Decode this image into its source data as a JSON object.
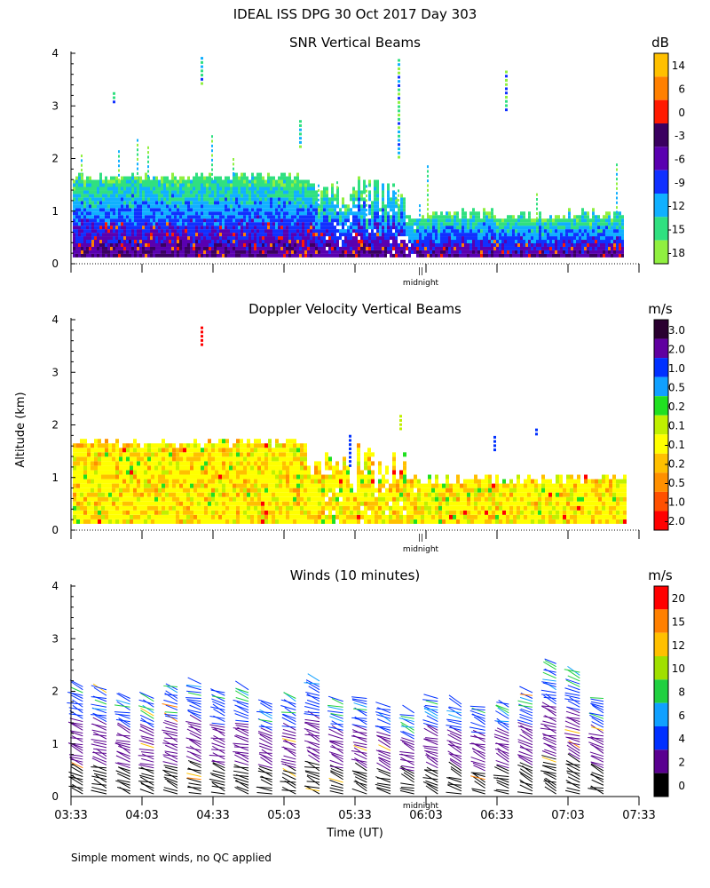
{
  "figure": {
    "title": "IDEAL ISS DPG  30 Oct 2017 Day 303",
    "ylabel": "Altitude (km)",
    "xlabel": "Time (UT)",
    "footnote": "Simple moment winds, no QC applied",
    "midnight_label": "midnight",
    "midnight_mark": "||"
  },
  "chart_data": [
    {
      "type": "heatmap",
      "title": "SNR Vertical Beams",
      "ylim": [
        0,
        4
      ],
      "yticks": [
        "0",
        "1",
        "2",
        "3",
        "4"
      ],
      "colorbar": {
        "unit": "dB",
        "labels": [
          "14",
          "6",
          "0",
          "-3",
          "-6",
          "-9",
          "-12",
          "-15",
          "-18"
        ],
        "colors": [
          "#ffc000",
          "#ff8000",
          "#ff1a00",
          "#3a0060",
          "#5a00b0",
          "#1030ff",
          "#10b0ff",
          "#30e080",
          "#90f040"
        ]
      },
      "legend": "right",
      "grid": false,
      "features": [
        "dense echo 0-1.6 km from 03:33 to 05:30",
        "thinner layer 0-0.9 km after 06:00",
        "vertical plumes up to ~4 km near 04:26"
      ]
    },
    {
      "type": "heatmap",
      "title": "Doppler Velocity Vertical Beams",
      "ylim": [
        0,
        4
      ],
      "yticks": [
        "0",
        "1",
        "2",
        "3",
        "4"
      ],
      "colorbar": {
        "unit": "m/s",
        "labels": [
          "3.0",
          "2.0",
          "1.0",
          "0.5",
          "0.2",
          "0.1",
          "-0.1",
          "-0.2",
          "-0.5",
          "-1.0",
          "-2.0"
        ],
        "colors": [
          "#2a0030",
          "#6000a0",
          "#0030ff",
          "#10a0ff",
          "#20e020",
          "#c0f000",
          "#ffff00",
          "#ffc000",
          "#ff9000",
          "#ff5000",
          "#ff0000"
        ]
      },
      "legend": "right",
      "grid": false,
      "features": [
        "mostly yellow/orange (-0.1 to -0.5 m/s) below 1.7 km"
      ]
    },
    {
      "type": "scatter",
      "title": "Winds (10 minutes)",
      "ylim": [
        0,
        4
      ],
      "yticks": [
        "0",
        "1",
        "2",
        "3",
        "4"
      ],
      "xticks": [
        "03:33",
        "04:03",
        "04:33",
        "05:03",
        "05:33",
        "06:03",
        "06:33",
        "07:03",
        "07:33"
      ],
      "profile_times": [
        "03:38",
        "03:48",
        "03:58",
        "04:08",
        "04:18",
        "04:28",
        "04:38",
        "04:48",
        "04:58",
        "05:08",
        "05:18",
        "05:28",
        "05:38",
        "05:48",
        "05:58",
        "06:08",
        "06:18",
        "06:28",
        "06:38",
        "06:48",
        "06:58",
        "07:08",
        "07:18"
      ],
      "profile_top_km": [
        2.1,
        2.05,
        1.9,
        1.9,
        2.1,
        2.15,
        2.0,
        2.05,
        1.8,
        1.9,
        2.2,
        1.85,
        1.9,
        1.7,
        1.6,
        1.9,
        1.8,
        1.75,
        1.8,
        2.0,
        2.55,
        2.4,
        1.9
      ],
      "colorbar": {
        "unit": "m/s",
        "labels": [
          "20",
          "15",
          "12",
          "10",
          "8",
          "6",
          "4",
          "2",
          "0"
        ],
        "colors": [
          "#ff0000",
          "#ff8000",
          "#ffc000",
          "#a0e000",
          "#20d040",
          "#10a0ff",
          "#0030ff",
          "#5a0090",
          "#000000"
        ]
      },
      "legend": "right",
      "grid": false
    }
  ]
}
